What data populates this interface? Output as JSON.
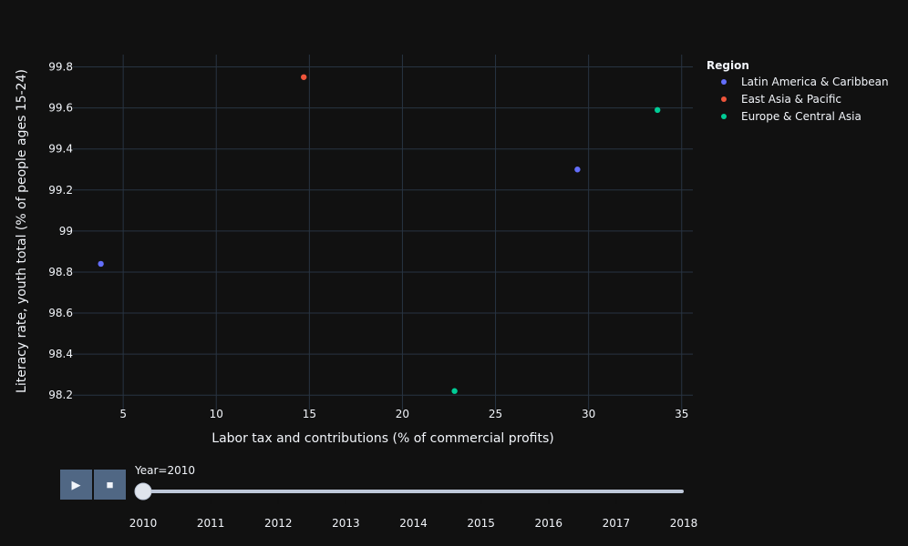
{
  "chart_data": {
    "type": "scatter",
    "xlabel": "Labor tax and contributions (% of commercial profits)",
    "ylabel": "Literacy rate, youth total (% of people ages 15-24)",
    "xlim": [
      2.3,
      35.6
    ],
    "ylim": [
      98.13,
      99.86
    ],
    "x_ticks": [
      5,
      10,
      15,
      20,
      25,
      30,
      35
    ],
    "y_ticks": [
      98.2,
      98.4,
      98.6,
      98.8,
      99,
      99.2,
      99.4,
      99.6,
      99.8
    ],
    "x_tick_labels": [
      "5",
      "10",
      "15",
      "20",
      "25",
      "30",
      "35"
    ],
    "y_tick_labels": [
      "98.2",
      "98.4",
      "98.6",
      "98.8",
      "99",
      "99.2",
      "99.4",
      "99.6",
      "99.8"
    ],
    "grid": true,
    "legend_title": "Region",
    "legend_position": "top-right",
    "series": [
      {
        "name": "Latin America & Caribbean",
        "color": "#636efa",
        "points": [
          {
            "x": 3.8,
            "y": 98.84
          },
          {
            "x": 29.4,
            "y": 99.3
          }
        ]
      },
      {
        "name": "East Asia & Pacific",
        "color": "#ef553b",
        "points": [
          {
            "x": 14.7,
            "y": 99.75
          }
        ]
      },
      {
        "name": "Europe & Central Asia",
        "color": "#00cc96",
        "points": [
          {
            "x": 33.7,
            "y": 99.59
          },
          {
            "x": 22.8,
            "y": 98.22
          }
        ]
      }
    ]
  },
  "animation": {
    "play_icon": "play-icon",
    "stop_icon": "stop-icon",
    "current_label": "Year=2010",
    "current_index": 0,
    "steps": [
      "2010",
      "2011",
      "2012",
      "2013",
      "2014",
      "2015",
      "2016",
      "2017",
      "2018"
    ]
  }
}
